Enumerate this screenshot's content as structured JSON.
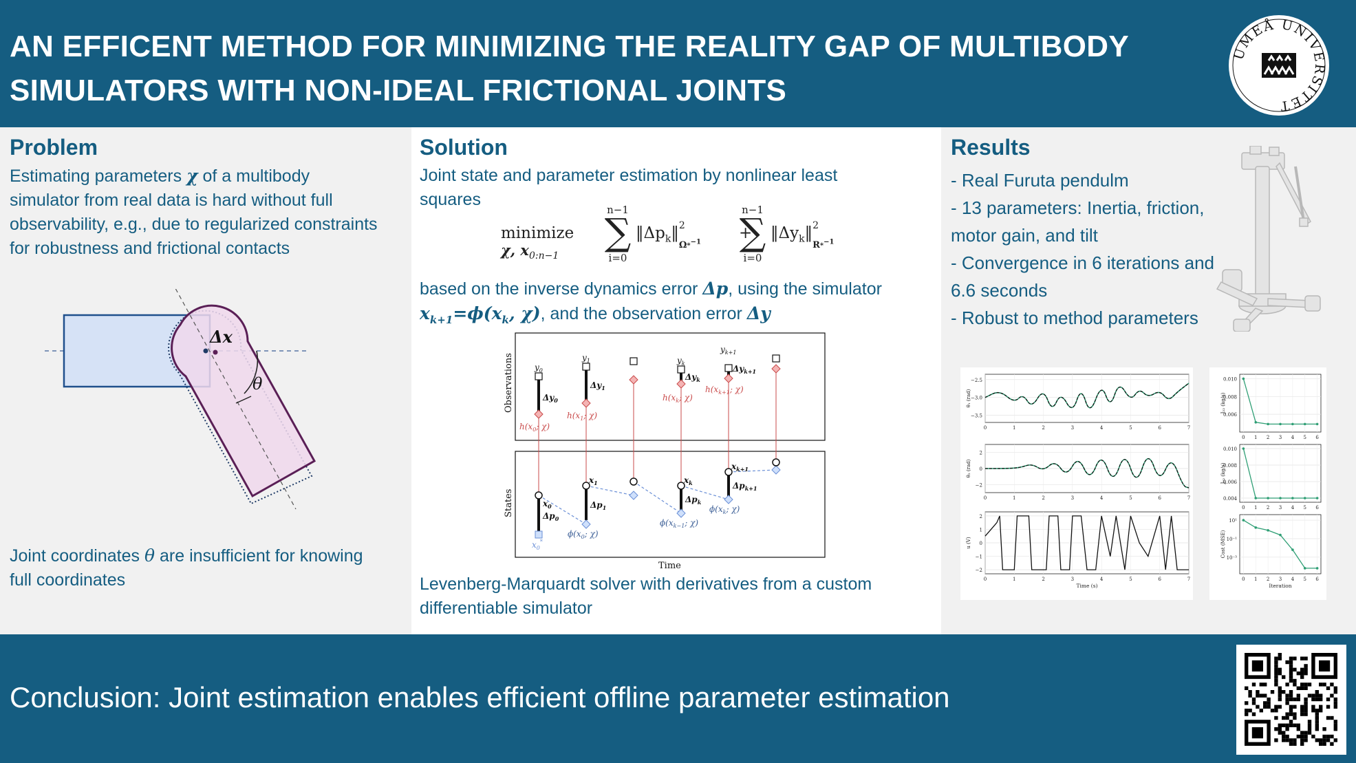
{
  "header": {
    "title_line1": "AN EFFICENT METHOD FOR MINIMIZING THE REALITY GAP OF MULTIBODY",
    "title_line2": "SIMULATORS WITH NON-IDEAL FRICTIONAL JOINTS",
    "logo_text": "UMEÅ UNIVERSITET"
  },
  "problem": {
    "title": "Problem",
    "text1": "Estimating parameters",
    "text1_sym": "χ",
    "text1_rest": "of a multibody",
    "line2": "simulator from real data is hard without full",
    "line3": "observability, e.g., due to regularized constraints",
    "line4": "for robustness and frictional contacts",
    "fig_dx": "Δx",
    "fig_theta": "θ",
    "bottom1a": "Joint coordinates",
    "bottom1_sym": "θ",
    "bottom1b": "are insufficient for knowing",
    "bottom2": "full coordinates"
  },
  "solution": {
    "title": "Solution",
    "line1": "Joint state and parameter estimation by nonlinear least",
    "line2": "squares",
    "eq_minimize": "minimize",
    "eq_vars": "χ, x",
    "eq_vars_sub": "0:n−1",
    "eq_sum_top": "n−1",
    "eq_sum_bottom": "i=0",
    "eq_term1": "‖Δp",
    "eq_term1_sub": "k",
    "eq_term1_norm": "‖",
    "eq_term1_exp": "2",
    "eq_term1_w": "Ω",
    "eq_term1_wexp": "−1",
    "eq_plus": "+",
    "eq_term2": "‖Δy",
    "eq_term2_sub": "k",
    "eq_term2_norm": "‖",
    "eq_term2_exp": "2",
    "eq_term2_w": "R",
    "eq_term2_wexp": "−1",
    "eq_star": "*",
    "desc1a": "based on the inverse dynamics error",
    "desc1_sym": "Δp",
    "desc1b": ", using the simulator",
    "desc2_sym": "x",
    "desc2_sub": "k+1",
    "desc2_eq": "=ϕ(x",
    "desc2_sub2": "k",
    "desc2_eq2": ", χ)",
    "desc2_rest": ", and the observation error",
    "desc2_sym2": "Δy",
    "bottom1": "Levenberg-Marquardt solver with derivatives from a custom",
    "bottom2": "differentiable simulator"
  },
  "diagram": {
    "obs_label": "Observations",
    "states_label": "States",
    "time_label": "Time",
    "y0": "y",
    "y0_sub": "0",
    "y1": "y",
    "y1_sub": "1",
    "yk": "y",
    "yk_sub": "k",
    "yk1": "y",
    "yk1_sub": "k+1",
    "dy0": "Δy",
    "dy0_sub": "0",
    "dy1": "Δy",
    "dy1_sub": "1",
    "dyk": "Δy",
    "dyk_sub": "k",
    "dyk1": "Δy",
    "dyk1_sub": "k+1",
    "h0": "h(x",
    "h0_sub": "0",
    "h0_end": "; χ)",
    "h1": "h(x",
    "h1_sub": "1",
    "h1_end": "; χ)",
    "hk": "h(x",
    "hk_sub": "k",
    "hk_end": "; χ)",
    "hk1": "h(x",
    "hk1_sub": "k+1",
    "hk1_end": "; χ)",
    "x0": "x",
    "x0_sub": "0",
    "x1": "x",
    "x1_sub": "1",
    "xk": "x",
    "xk_sub": "k",
    "xk1": "x",
    "xk1_sub": "k+1",
    "x0star": "x",
    "x0star_sub": "0",
    "x0star_sup": "*",
    "dp0": "Δp",
    "dp0_sub": "0",
    "dp1": "Δp",
    "dp1_sub": "1",
    "dpk": "Δp",
    "dpk_sub": "k",
    "dpk1": "Δp",
    "dpk1_sub": "k+1",
    "phi0": "ϕ(x",
    "phi0_sub": "0",
    "phi0_end": "; χ)",
    "phikm1": "ϕ(x",
    "phikm1_sub": "k−1",
    "phikm1_end": "; χ)",
    "phik": "ϕ(x",
    "phik_sub": "k",
    "phik_end": "; χ)"
  },
  "results": {
    "title": "Results",
    "b1": "- Real Furuta pendulm",
    "b2": "- 13 parameters: Inertia, friction,",
    "b3": "motor gain, and  tilt",
    "b4": "- Convergence in 6 iterations and",
    "b5": "6.6 seconds",
    "b6": "- Robust to method parameters"
  },
  "chart_data": [
    {
      "type": "line",
      "ylabel": "θ₁ (rad)",
      "yticks": [
        "−3.5",
        "−3.0",
        "−2.5"
      ],
      "xticks": [
        "0",
        "1",
        "2",
        "3",
        "4",
        "5",
        "6",
        "7"
      ],
      "x": [
        0,
        0.5,
        1.0,
        1.3,
        1.6,
        2.0,
        2.3,
        2.6,
        3.0,
        3.3,
        3.6,
        4.0,
        4.3,
        4.6,
        5.0,
        5.3,
        5.6,
        6.0,
        6.3,
        6.6,
        7.0
      ],
      "values": [
        -3.0,
        -2.8,
        -3.15,
        -2.9,
        -3.3,
        -2.75,
        -3.4,
        -2.85,
        -3.45,
        -2.7,
        -3.5,
        -2.6,
        -3.3,
        -2.55,
        -3.1,
        -2.75,
        -3.0,
        -2.8,
        -3.1,
        -2.85,
        -2.6
      ]
    },
    {
      "type": "line",
      "ylabel": "θ₂ (rad)",
      "yticks": [
        "2",
        "0",
        "−2"
      ],
      "xticks": [
        "0",
        "1",
        "2",
        "3",
        "4",
        "5",
        "6",
        "7"
      ],
      "x": [
        0,
        0.7,
        1.2,
        1.6,
        2.0,
        2.4,
        2.8,
        3.2,
        3.6,
        4.0,
        4.4,
        4.8,
        5.2,
        5.6,
        6.0,
        6.4,
        6.8,
        7.0
      ],
      "values": [
        0,
        0,
        0.1,
        0.6,
        -0.3,
        1.0,
        -1.0,
        1.6,
        -1.6,
        2.0,
        -2.0,
        2.2,
        -2.2,
        2.3,
        -1.8,
        1.6,
        -2.2,
        -2.4
      ]
    },
    {
      "type": "line",
      "ylabel": "u (V)",
      "xlabel": "Time (s)",
      "yticks": [
        "2",
        "1",
        "0",
        "−1",
        "−2"
      ],
      "xticks": [
        "0",
        "1",
        "2",
        "3",
        "4",
        "5",
        "6",
        "7"
      ],
      "x": [
        0,
        0.2,
        0.4,
        0.5,
        0.6,
        1.0,
        1.1,
        1.5,
        1.6,
        2.1,
        2.2,
        2.5,
        2.6,
        2.9,
        3.0,
        3.3,
        3.5,
        3.8,
        4.0,
        4.3,
        4.5,
        4.8,
        5.0,
        5.3,
        5.6,
        6.0,
        6.2,
        6.4,
        6.6,
        7.0
      ],
      "values": [
        0.5,
        1.0,
        1.5,
        2,
        -2,
        -2,
        2,
        2,
        -2,
        -2,
        2,
        2,
        -2,
        -2,
        2,
        2,
        -2,
        -2,
        2,
        -1,
        2,
        -2,
        2,
        0,
        -1,
        2,
        -2,
        2,
        -2,
        -2
      ]
    },
    {
      "type": "line",
      "ylabel": "J₂₂ (kg/s)",
      "yticks": [
        "0.010",
        "0.008",
        "0.006"
      ],
      "xticks": [
        "0",
        "1",
        "2",
        "3",
        "4",
        "5",
        "6"
      ],
      "x": [
        0,
        1,
        2,
        3,
        4,
        5,
        6
      ],
      "values": [
        0.01,
        0.0051,
        0.0049,
        0.0049,
        0.0049,
        0.0049,
        0.0049
      ]
    },
    {
      "type": "line",
      "ylabel": "J₀₂ (kg/s)",
      "yticks": [
        "0.010",
        "0.008",
        "0.006",
        "0.004"
      ],
      "xticks": [
        "0",
        "1",
        "2",
        "3",
        "4",
        "5",
        "6"
      ],
      "x": [
        0,
        1,
        2,
        3,
        4,
        5,
        6
      ],
      "values": [
        0.01,
        0.004,
        0.004,
        0.004,
        0.004,
        0.004,
        0.004
      ]
    },
    {
      "type": "line",
      "ylabel": "Cost (MSE)",
      "xlabel": "Iteration",
      "yticks": [
        "10¹",
        "10⁻¹",
        "10⁻³"
      ],
      "xticks": [
        "0",
        "1",
        "2",
        "3",
        "4",
        "5",
        "6"
      ],
      "x": [
        0,
        1,
        2,
        3,
        4,
        5,
        6
      ],
      "values": [
        1,
        0.2,
        -0.1,
        -0.6,
        -2.2,
        -4.2,
        -4.2
      ]
    }
  ],
  "footer": {
    "conclusion": "Conclusion: Joint estimation enables efficient offline parameter estimation"
  }
}
